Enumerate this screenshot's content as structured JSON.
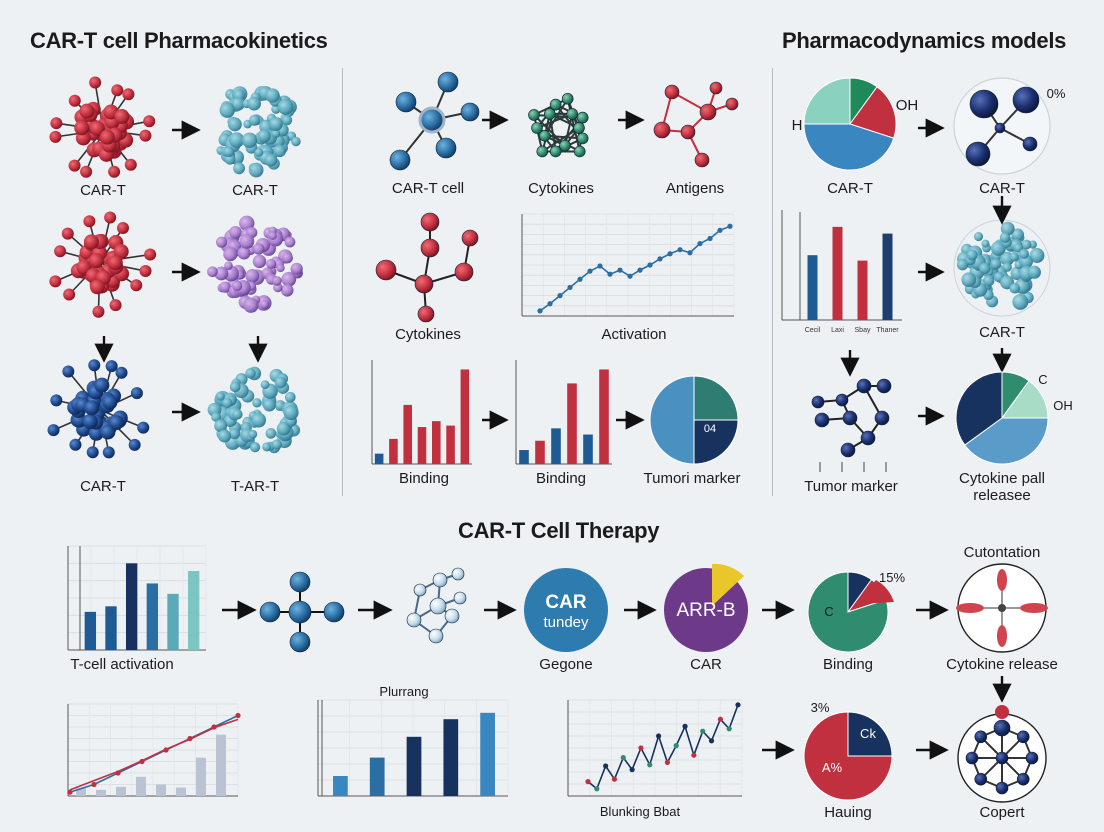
{
  "titles": {
    "pk": "CAR-T cell Pharmacokinetics",
    "pd": "Pharmacodynamics models",
    "therapy": "CAR-T Cell Therapy"
  },
  "pk_labels": {
    "r1_left": "CAR-T",
    "r1_right": "CAR-T",
    "r3_left": "CAR-T",
    "r3_right": "T-AR-T"
  },
  "mid_labels": {
    "cart_cell": "CAR-T cell",
    "cytokines": "Cytokines",
    "antigens": "Antigens",
    "cytokines2": "Cytokines",
    "activation": "Activation",
    "binding1": "Binding",
    "binding2": "Binding",
    "tumor_marker": "Tumori marker",
    "pie_label": "04"
  },
  "pd_labels": {
    "pie_h": "H",
    "pie_oh": "OH",
    "pie_cap": "CAR-T",
    "sphere_pct": "0%",
    "sphere_cap": "CAR-T",
    "bar_cap_cluster": "CAR-T",
    "bar_ticks": [
      "Cecil",
      "Laxi",
      "Sbay",
      "Thaner"
    ],
    "tumor_marker": "Tumor marker",
    "pie2_c": "C",
    "pie2_oh": "OH",
    "cytokine_line1": "Cytokine pall",
    "cytokine_line2": "releasee"
  },
  "therapy_row1": {
    "tcell": "T-cell activation",
    "circle1_line1": "CAR",
    "circle1_line2": "tundey",
    "gegone": "Gegone",
    "circle2": "ARR-B",
    "car": "CAR",
    "binding": "Binding",
    "pie_c": "C",
    "pie_pct": "15%",
    "cutontation": "Cutontation",
    "cytokine_release": "Cytokine release"
  },
  "therapy_row2": {
    "bar_title": "Plurrang",
    "blunking": "Blunking Bbat",
    "pie_pct": "3%",
    "pie_ck": "Ck",
    "pie_a": "A%",
    "hauing": "Hauing",
    "copert": "Copert"
  },
  "chart_data": [
    {
      "type": "line",
      "label": "Activation",
      "values": [
        0.5,
        1.2,
        2.0,
        2.8,
        3.6,
        4.4,
        4.9,
        4.1,
        4.5,
        3.9,
        4.5,
        5.0,
        5.6,
        6.1,
        6.5,
        6.2,
        7.1,
        7.6,
        8.4,
        8.8
      ],
      "ylim": [
        0,
        10
      ]
    },
    {
      "type": "bar",
      "label": "Binding",
      "values": [
        0.7,
        1.7,
        4.0,
        2.5,
        2.9,
        2.6,
        6.4
      ],
      "colors": [
        "#1e5a94",
        "#c1303f",
        "#c1303f",
        "#c1303f",
        "#c1303f",
        "#c1303f",
        "#c1303f"
      ]
    },
    {
      "type": "bar",
      "label": "Binding",
      "values": [
        0.9,
        1.5,
        2.3,
        5.2,
        1.9,
        6.1
      ],
      "colors": [
        "#1e5a94",
        "#c1303f",
        "#1e5a94",
        "#c1303f",
        "#1e5a94",
        "#c1303f"
      ]
    },
    {
      "type": "pie",
      "label": "Tumori marker",
      "values": [
        0.25,
        0.25,
        0.5
      ],
      "colors": [
        "#2f7d72",
        "#17325e",
        "#4a91c2"
      ]
    },
    {
      "type": "pie",
      "label": "CAR-T",
      "values": [
        0.1,
        0.2,
        0.45,
        0.25
      ],
      "colors": [
        "#1e8a5a",
        "#c1303f",
        "#3a86c0",
        "#8ad1c0"
      ]
    },
    {
      "type": "bar",
      "label": "CAR-T",
      "categories": [
        "Cecil",
        "Laxi",
        "Sbay",
        "Thaner"
      ],
      "values": [
        48,
        69,
        44,
        64
      ],
      "colors": [
        "#1e5a94",
        "#c1303f",
        "#c1303f",
        "#1e3e6e"
      ],
      "ylim": [
        0,
        80
      ]
    },
    {
      "type": "pie",
      "label": "Cytokine pall releasee",
      "values": [
        0.1,
        0.15,
        0.4,
        0.35
      ],
      "colors": [
        "#2f8c6e",
        "#a9dcc6",
        "#5a9bc9",
        "#17325e"
      ]
    },
    {
      "type": "bar",
      "label": "T-cell activation",
      "values": [
        5.5,
        6.3,
        12.5,
        9.6,
        8.1,
        11.4
      ],
      "colors": [
        "#1e5a94",
        "#1e5a94",
        "#17325e",
        "#2a6ea3",
        "#5aaab8",
        "#7cc6c1"
      ],
      "ylim": [
        0,
        15
      ]
    },
    {
      "type": "pie",
      "label": "Binding",
      "values": [
        0.1,
        0.1,
        0.8
      ],
      "colors": [
        "#17325e",
        "#c1303f",
        "#2f8c6e"
      ]
    },
    {
      "type": "line",
      "label": "",
      "series": [
        {
          "name": "",
          "values": [
            0.5,
            1.5,
            3,
            4.5,
            6,
            7.5,
            9,
            10.5
          ]
        },
        {
          "name": "",
          "values": [
            0.8,
            2,
            3.2,
            4.6,
            6.1,
            7.4,
            8.9,
            10
          ]
        }
      ],
      "bars": [
        1,
        0.8,
        1.2,
        2.5,
        1.5,
        1.1,
        5.0,
        8.0
      ],
      "ylim": [
        0,
        12
      ]
    },
    {
      "type": "bar",
      "title": "Plurrang",
      "values": [
        2.5,
        4.8,
        7.4,
        9.6,
        10.4
      ],
      "colors": [
        "#3a86c0",
        "#2a6ea3",
        "#17325e",
        "#17325e",
        "#3a86c0"
      ],
      "ylim": [
        0,
        12
      ]
    },
    {
      "type": "line",
      "label": "Blunking Bbat",
      "values": [
        1.2,
        0.6,
        2.5,
        1.4,
        3.2,
        2.2,
        4.0,
        2.6,
        5.0,
        2.8,
        4.2,
        5.8,
        3.4,
        5.4,
        4.6,
        6.4,
        5.6,
        7.6
      ],
      "ylim": [
        0,
        8
      ]
    },
    {
      "type": "pie",
      "label": "Hauing",
      "values": [
        0.25,
        0.75
      ],
      "colors": [
        "#17325e",
        "#c1303f"
      ]
    }
  ]
}
